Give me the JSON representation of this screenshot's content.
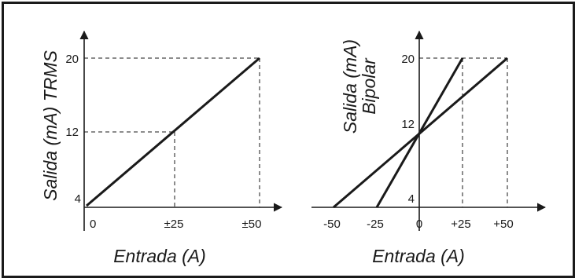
{
  "chart_data": [
    {
      "type": "line",
      "xlabel": "Entrada (A)",
      "ylabel": "Salida (mA) TRMS",
      "x_ticks": [
        "0",
        "±25",
        "±50"
      ],
      "y_ticks": [
        "4",
        "12",
        "20"
      ],
      "series": [
        {
          "x": [
            0,
            50
          ],
          "y": [
            4,
            20
          ]
        }
      ],
      "guides": [
        {
          "x": 25,
          "y": 12
        },
        {
          "x": 50,
          "y": 20
        }
      ]
    },
    {
      "type": "line",
      "xlabel": "Entrada (A)",
      "ylabel": "Salida (mA)",
      "ylabel2": "Bipolar",
      "x_ticks": [
        "-50",
        "-25",
        "0",
        "+25",
        "+50"
      ],
      "y_ticks": [
        "4",
        "12",
        "20"
      ],
      "series": [
        {
          "x": [
            -50,
            50
          ],
          "y": [
            4,
            20
          ]
        },
        {
          "x": [
            -25,
            25
          ],
          "y": [
            4,
            20
          ]
        }
      ],
      "guides": [
        {
          "x": 25,
          "y": 20
        },
        {
          "x": 50,
          "y": 20
        }
      ]
    }
  ],
  "colors": {
    "ink": "#1a1a1a",
    "background": "#ffffff"
  }
}
